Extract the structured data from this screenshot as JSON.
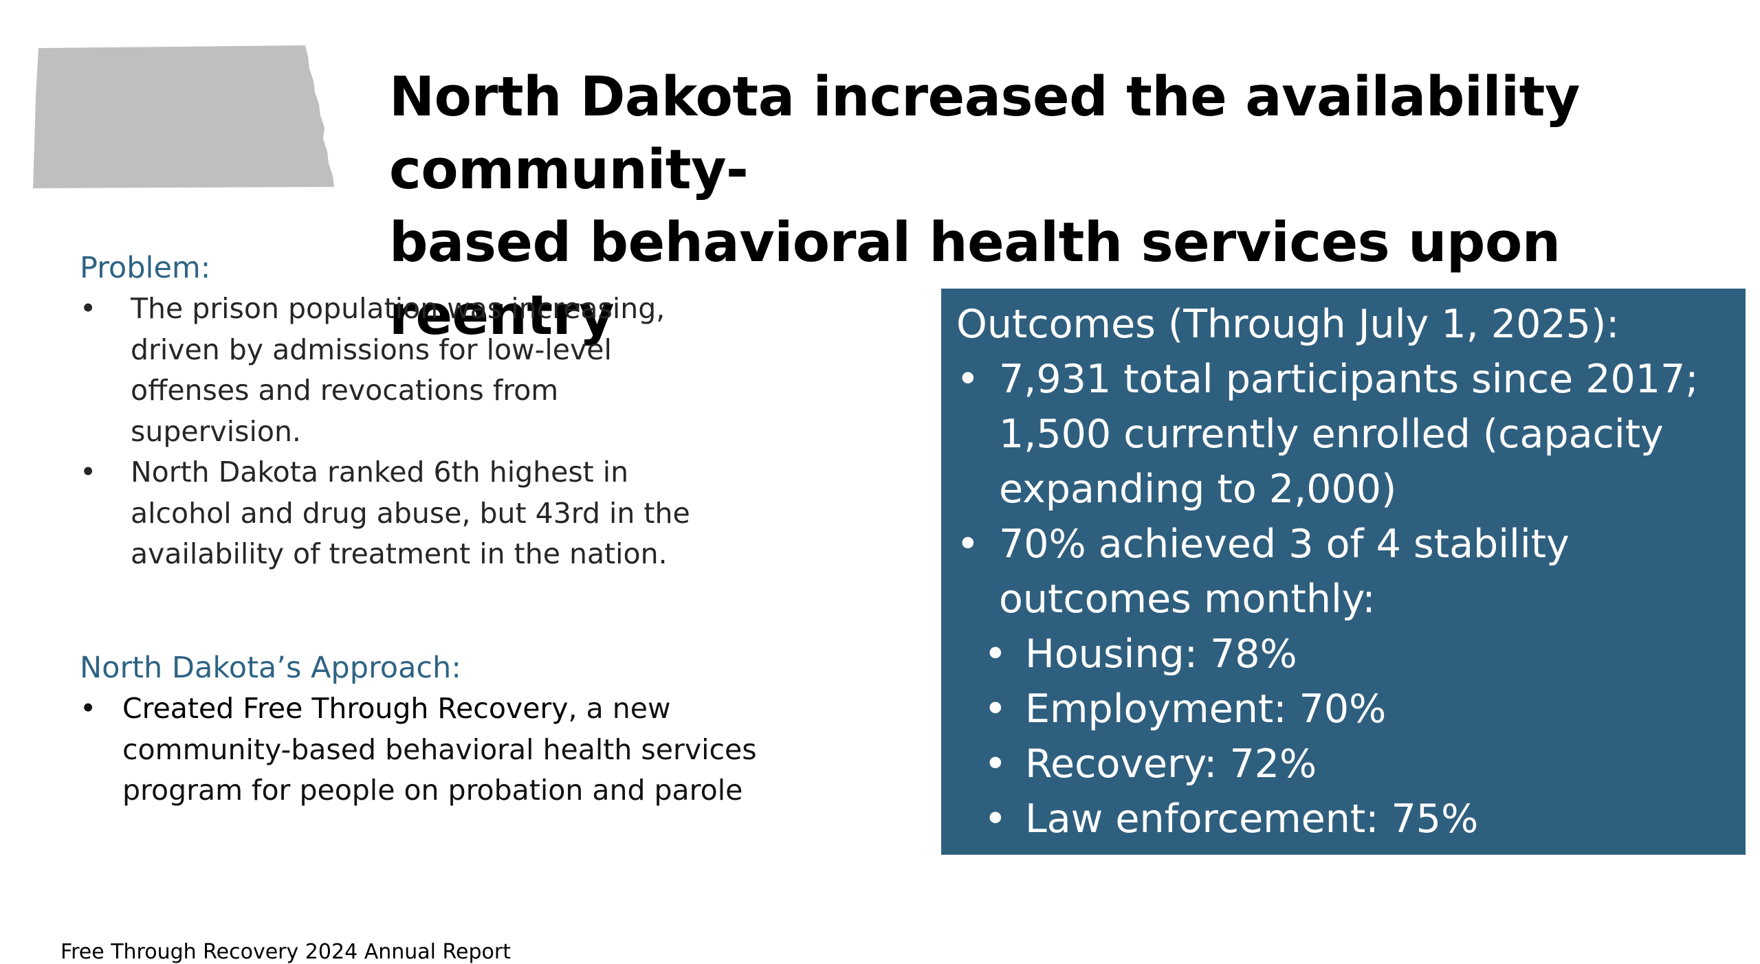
{
  "title": {
    "line1": "North Dakota increased the availability community-",
    "line2": "based behavioral health services upon reentry"
  },
  "map": {
    "icon": "north-dakota-state-silhouette",
    "color": "#bfbfbf"
  },
  "problem": {
    "heading": "Problem:",
    "items": [
      {
        "bullet": "•",
        "lines": [
          "The prison population was increasing,",
          "driven by admissions for low-level",
          "offenses and revocations from",
          "supervision."
        ]
      },
      {
        "bullet": "•",
        "lines": [
          "North Dakota ranked 6th highest in",
          "alcohol and drug abuse, but 43rd in the",
          "availability of treatment in the nation."
        ]
      }
    ]
  },
  "approach": {
    "heading": "North Dakota’s Approach:",
    "items": [
      {
        "bullet": "•",
        "lead": "Created Free Through Recovery",
        "rest_first": ", a new",
        "lines": [
          "community-based behavioral health services",
          "program for people on probation and parole"
        ]
      }
    ]
  },
  "outcomes": {
    "title": "Outcomes (Through July 1, 2025):",
    "box_color": "#2f5f7e",
    "items": [
      {
        "bullet": "•",
        "lines": [
          "7,931 total participants since 2017;",
          "1,500 currently enrolled (capacity",
          "expanding to 2,000)"
        ]
      },
      {
        "bullet": "•",
        "lines": [
          "70% achieved 3 of 4 stability",
          "outcomes monthly:"
        ]
      }
    ],
    "sub_items": [
      {
        "bullet": "•",
        "text": "Housing: 78%"
      },
      {
        "bullet": "•",
        "text": "Employment: 70%"
      },
      {
        "bullet": "•",
        "text": "Recovery: 72%"
      },
      {
        "bullet": "•",
        "text": "Law enforcement: 75%"
      }
    ]
  },
  "footer": {
    "source": "Free Through Recovery 2024 Annual Report"
  }
}
